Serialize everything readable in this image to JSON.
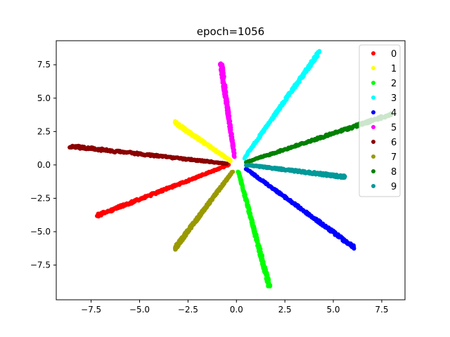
{
  "chart_data": {
    "type": "scatter",
    "title": "epoch=1056",
    "xlabel": "",
    "ylabel": "",
    "xlim": [
      -9.3,
      8.7
    ],
    "ylim": [
      -10.1,
      9.3
    ],
    "xticks": [
      -7.5,
      -5.0,
      -2.5,
      0.0,
      2.5,
      5.0,
      7.5
    ],
    "xtick_labels": [
      "−7.5",
      "−5.0",
      "−2.5",
      "0.0",
      "2.5",
      "5.0",
      "7.5"
    ],
    "yticks": [
      -7.5,
      -5.0,
      -2.5,
      0.0,
      2.5,
      5.0,
      7.5
    ],
    "ytick_labels": [
      "−7.5",
      "−5.0",
      "−2.5",
      "0.0",
      "2.5",
      "5.0",
      "7.5"
    ],
    "grid": false,
    "legend_position": "top-right",
    "series": [
      {
        "name": "0",
        "color": "#ff0000",
        "start": [
          -0.4,
          0.0
        ],
        "end": [
          -7.2,
          -3.8
        ]
      },
      {
        "name": "1",
        "color": "#ffff00",
        "start": [
          -0.3,
          0.3
        ],
        "end": [
          -3.2,
          3.2
        ]
      },
      {
        "name": "2",
        "color": "#00ff00",
        "start": [
          0.1,
          -0.5
        ],
        "end": [
          1.7,
          -9.1
        ]
      },
      {
        "name": "3",
        "color": "#00ffff",
        "start": [
          0.4,
          0.5
        ],
        "end": [
          4.3,
          8.5
        ]
      },
      {
        "name": "4",
        "color": "#0000ff",
        "start": [
          0.5,
          -0.3
        ],
        "end": [
          6.1,
          -6.2
        ]
      },
      {
        "name": "5",
        "color": "#ff00ff",
        "start": [
          -0.1,
          0.6
        ],
        "end": [
          -0.8,
          7.6
        ]
      },
      {
        "name": "6",
        "color": "#8b0000",
        "start": [
          -0.5,
          0.1
        ],
        "end": [
          -8.6,
          1.4
        ]
      },
      {
        "name": "7",
        "color": "#999900",
        "start": [
          -0.2,
          -0.5
        ],
        "end": [
          -3.2,
          -6.3
        ]
      },
      {
        "name": "8",
        "color": "#008000",
        "start": [
          0.5,
          0.2
        ],
        "end": [
          8.0,
          3.8
        ]
      },
      {
        "name": "9",
        "color": "#009999",
        "start": [
          0.5,
          0.0
        ],
        "end": [
          5.6,
          -0.9
        ]
      }
    ]
  }
}
